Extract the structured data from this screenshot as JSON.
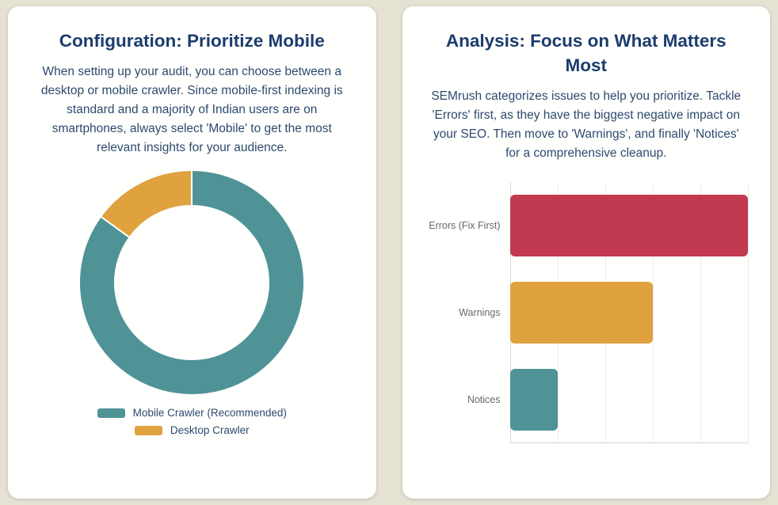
{
  "page_background": "#e6e2d3",
  "cards": [
    {
      "title": "Configuration: Prioritize Mobile",
      "description": "When setting up your audit, you can choose between a desktop or mobile crawler. Since mobile-first indexing is standard and a majority of Indian users are on smartphones, always select 'Mobile' to get the most relevant insights for your audience."
    },
    {
      "title": "Analysis: Focus on What Matters Most",
      "description": "SEMrush categorizes issues to help you prioritize. Tackle 'Errors' first, as they have the biggest negative impact on your SEO. Then move to 'Warnings', and finally 'Notices' for a comprehensive cleanup."
    }
  ],
  "chart_data": [
    {
      "type": "pie",
      "subtype": "doughnut",
      "title": "",
      "labels": [
        "Mobile Crawler (Recommended)",
        "Desktop Crawler"
      ],
      "values": [
        85,
        15
      ],
      "colors": [
        "#4f9396",
        "#e0a23f"
      ],
      "legend_position": "bottom",
      "start_angle_deg": 0,
      "direction": "clockwise",
      "cutout_ratio": 0.68,
      "slice_border_color": "#ffffff"
    },
    {
      "type": "bar",
      "orientation": "horizontal",
      "title": "",
      "categories": [
        "Errors (Fix First)",
        "Warnings",
        "Notices"
      ],
      "values": [
        100,
        60,
        20
      ],
      "colors": [
        "#c13a50",
        "#e0a23f",
        "#4f9396"
      ],
      "xlim": [
        0,
        100
      ],
      "grid_step": 20,
      "grid": true,
      "tick_labels": "hidden",
      "legend": "none"
    }
  ],
  "theme": {
    "card_background": "#ffffff",
    "title_color": "#1d3c6d",
    "body_color": "#2d4a6e",
    "axis_label_color": "#65696e",
    "gridline_color": "#ececec",
    "axis_line_color": "#d8d8d8"
  }
}
